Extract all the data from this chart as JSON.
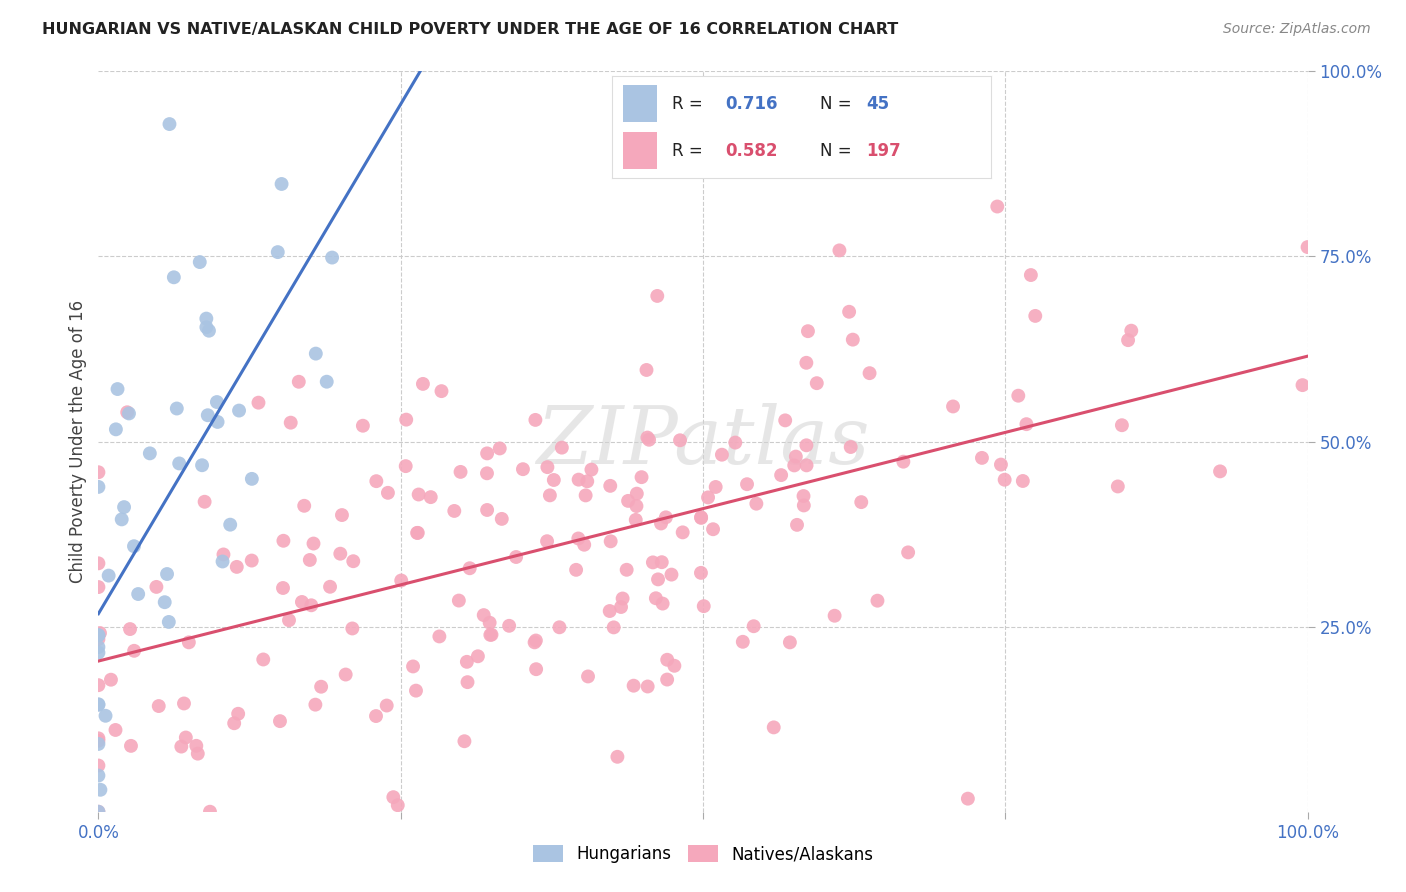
{
  "title": "HUNGARIAN VS NATIVE/ALASKAN CHILD POVERTY UNDER THE AGE OF 16 CORRELATION CHART",
  "source": "Source: ZipAtlas.com",
  "ylabel": "Child Poverty Under the Age of 16",
  "hungarian_R": 0.716,
  "hungarian_N": 45,
  "native_R": 0.582,
  "native_N": 197,
  "hungarian_color": "#aac4e2",
  "native_color": "#f5a8bc",
  "trend_hungarian_color": "#4472c4",
  "trend_native_color": "#d94f6e",
  "watermark": "ZIPatlas",
  "hung_seed": 77,
  "nat_seed": 42,
  "legend_R1": "0.716",
  "legend_N1": "45",
  "legend_R2": "0.582",
  "legend_N2": "197"
}
